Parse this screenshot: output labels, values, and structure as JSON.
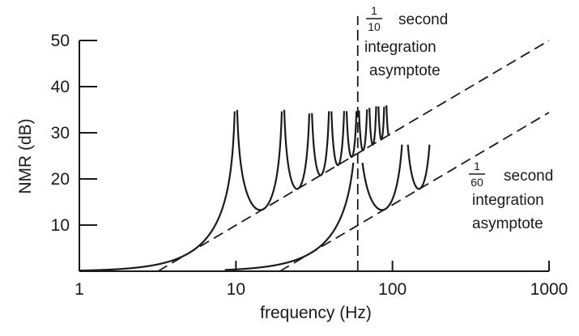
{
  "chart_data": {
    "type": "line",
    "xscale": "log",
    "xlim": [
      1,
      1000
    ],
    "ylim": [
      0,
      50
    ],
    "xlabel": "frequency (Hz)",
    "ylabel": "NMR (dB)",
    "x_ticks": [
      1,
      10,
      100,
      1000
    ],
    "x_tick_labels": [
      "1",
      "10",
      "100",
      "1000"
    ],
    "y_ticks": [
      10,
      20,
      30,
      40,
      50
    ],
    "y_tick_labels": [
      "10",
      "20",
      "30",
      "40",
      "50"
    ],
    "grid": false,
    "vertical_marker": {
      "x": 60
    },
    "series": [
      {
        "style": "solid",
        "equation": "NMR = -20*log10(|sin(pi*f*T)/(pi*f*T)|), T = 0.1 s",
        "integration_time_s": 0.1,
        "x_range": [
          1,
          95
        ],
        "peak_clip": [
          35,
          35,
          34.5,
          35,
          35,
          35,
          35.5,
          36,
          36,
          36.5
        ],
        "notch_frequencies": [
          10,
          20,
          30,
          40,
          50,
          60,
          70,
          80,
          90
        ]
      },
      {
        "style": "solid",
        "equation": "NMR = -20*log10(|sin(pi*f*T)/(pi*f*T)|), T = 1/60 s",
        "integration_time_s": 0.016667,
        "x_range": [
          8.5,
          180
        ],
        "peak_clip": [
          23.5,
          27.5
        ],
        "notch_frequencies": [
          60,
          120
        ]
      },
      {
        "style": "dashed",
        "equation": "NMR = 20*log10(pi*f*T), T = 0.1 s",
        "x": [
          3.18,
          1000
        ],
        "y": [
          0,
          50
        ]
      },
      {
        "style": "dashed",
        "equation": "NMR = 20*log10(pi*f*T), T = 1/60 s",
        "x": [
          19.1,
          1000
        ],
        "y": [
          0,
          34.4
        ]
      }
    ],
    "annotations": [
      {
        "numerator": "1",
        "denominator": "10",
        "lines": [
          "second",
          "integration",
          "asymptote"
        ]
      },
      {
        "numerator": "1",
        "denominator": "60",
        "lines": [
          "second",
          "integration",
          "asymptote"
        ]
      }
    ]
  }
}
